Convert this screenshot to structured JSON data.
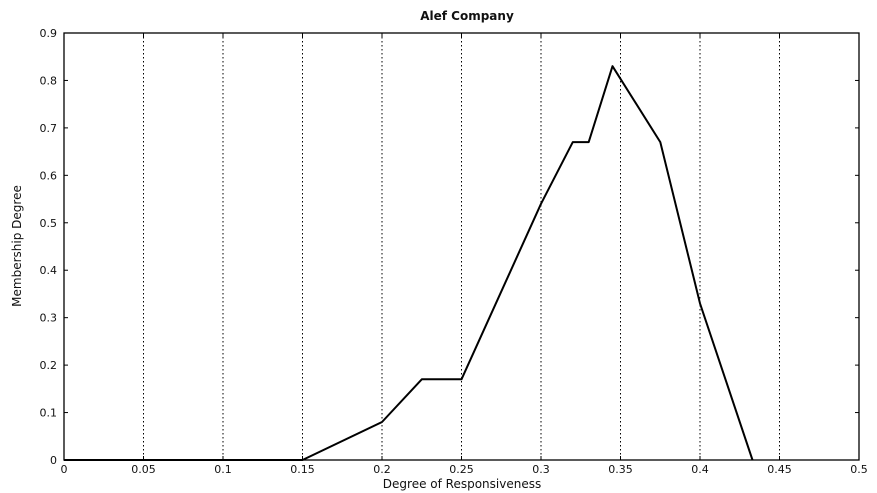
{
  "chart_data": {
    "type": "line",
    "title": "Alef Company",
    "xlabel": "Degree of Responsiveness",
    "ylabel": "Membership Degree",
    "xlim": [
      0,
      0.5
    ],
    "ylim": [
      0,
      0.9
    ],
    "grid": "vertical dotted",
    "x_ticks": [
      "0",
      "0.05",
      "0.1",
      "0.15",
      "0.2",
      "0.25",
      "0.3",
      "0.35",
      "0.4",
      "0.45",
      "0.5"
    ],
    "y_ticks": [
      "0",
      "0.1",
      "0.2",
      "0.3",
      "0.4",
      "0.5",
      "0.6",
      "0.7",
      "0.8",
      "0.9"
    ],
    "series": [
      {
        "x": [
          0.0,
          0.15,
          0.2,
          0.225,
          0.25,
          0.3,
          0.32,
          0.33,
          0.345,
          0.375,
          0.4,
          0.433
        ],
        "y": [
          0.0,
          0.0,
          0.08,
          0.17,
          0.17,
          0.54,
          0.67,
          0.67,
          0.83,
          0.67,
          0.33,
          0.0
        ],
        "color": "#000000"
      }
    ]
  }
}
